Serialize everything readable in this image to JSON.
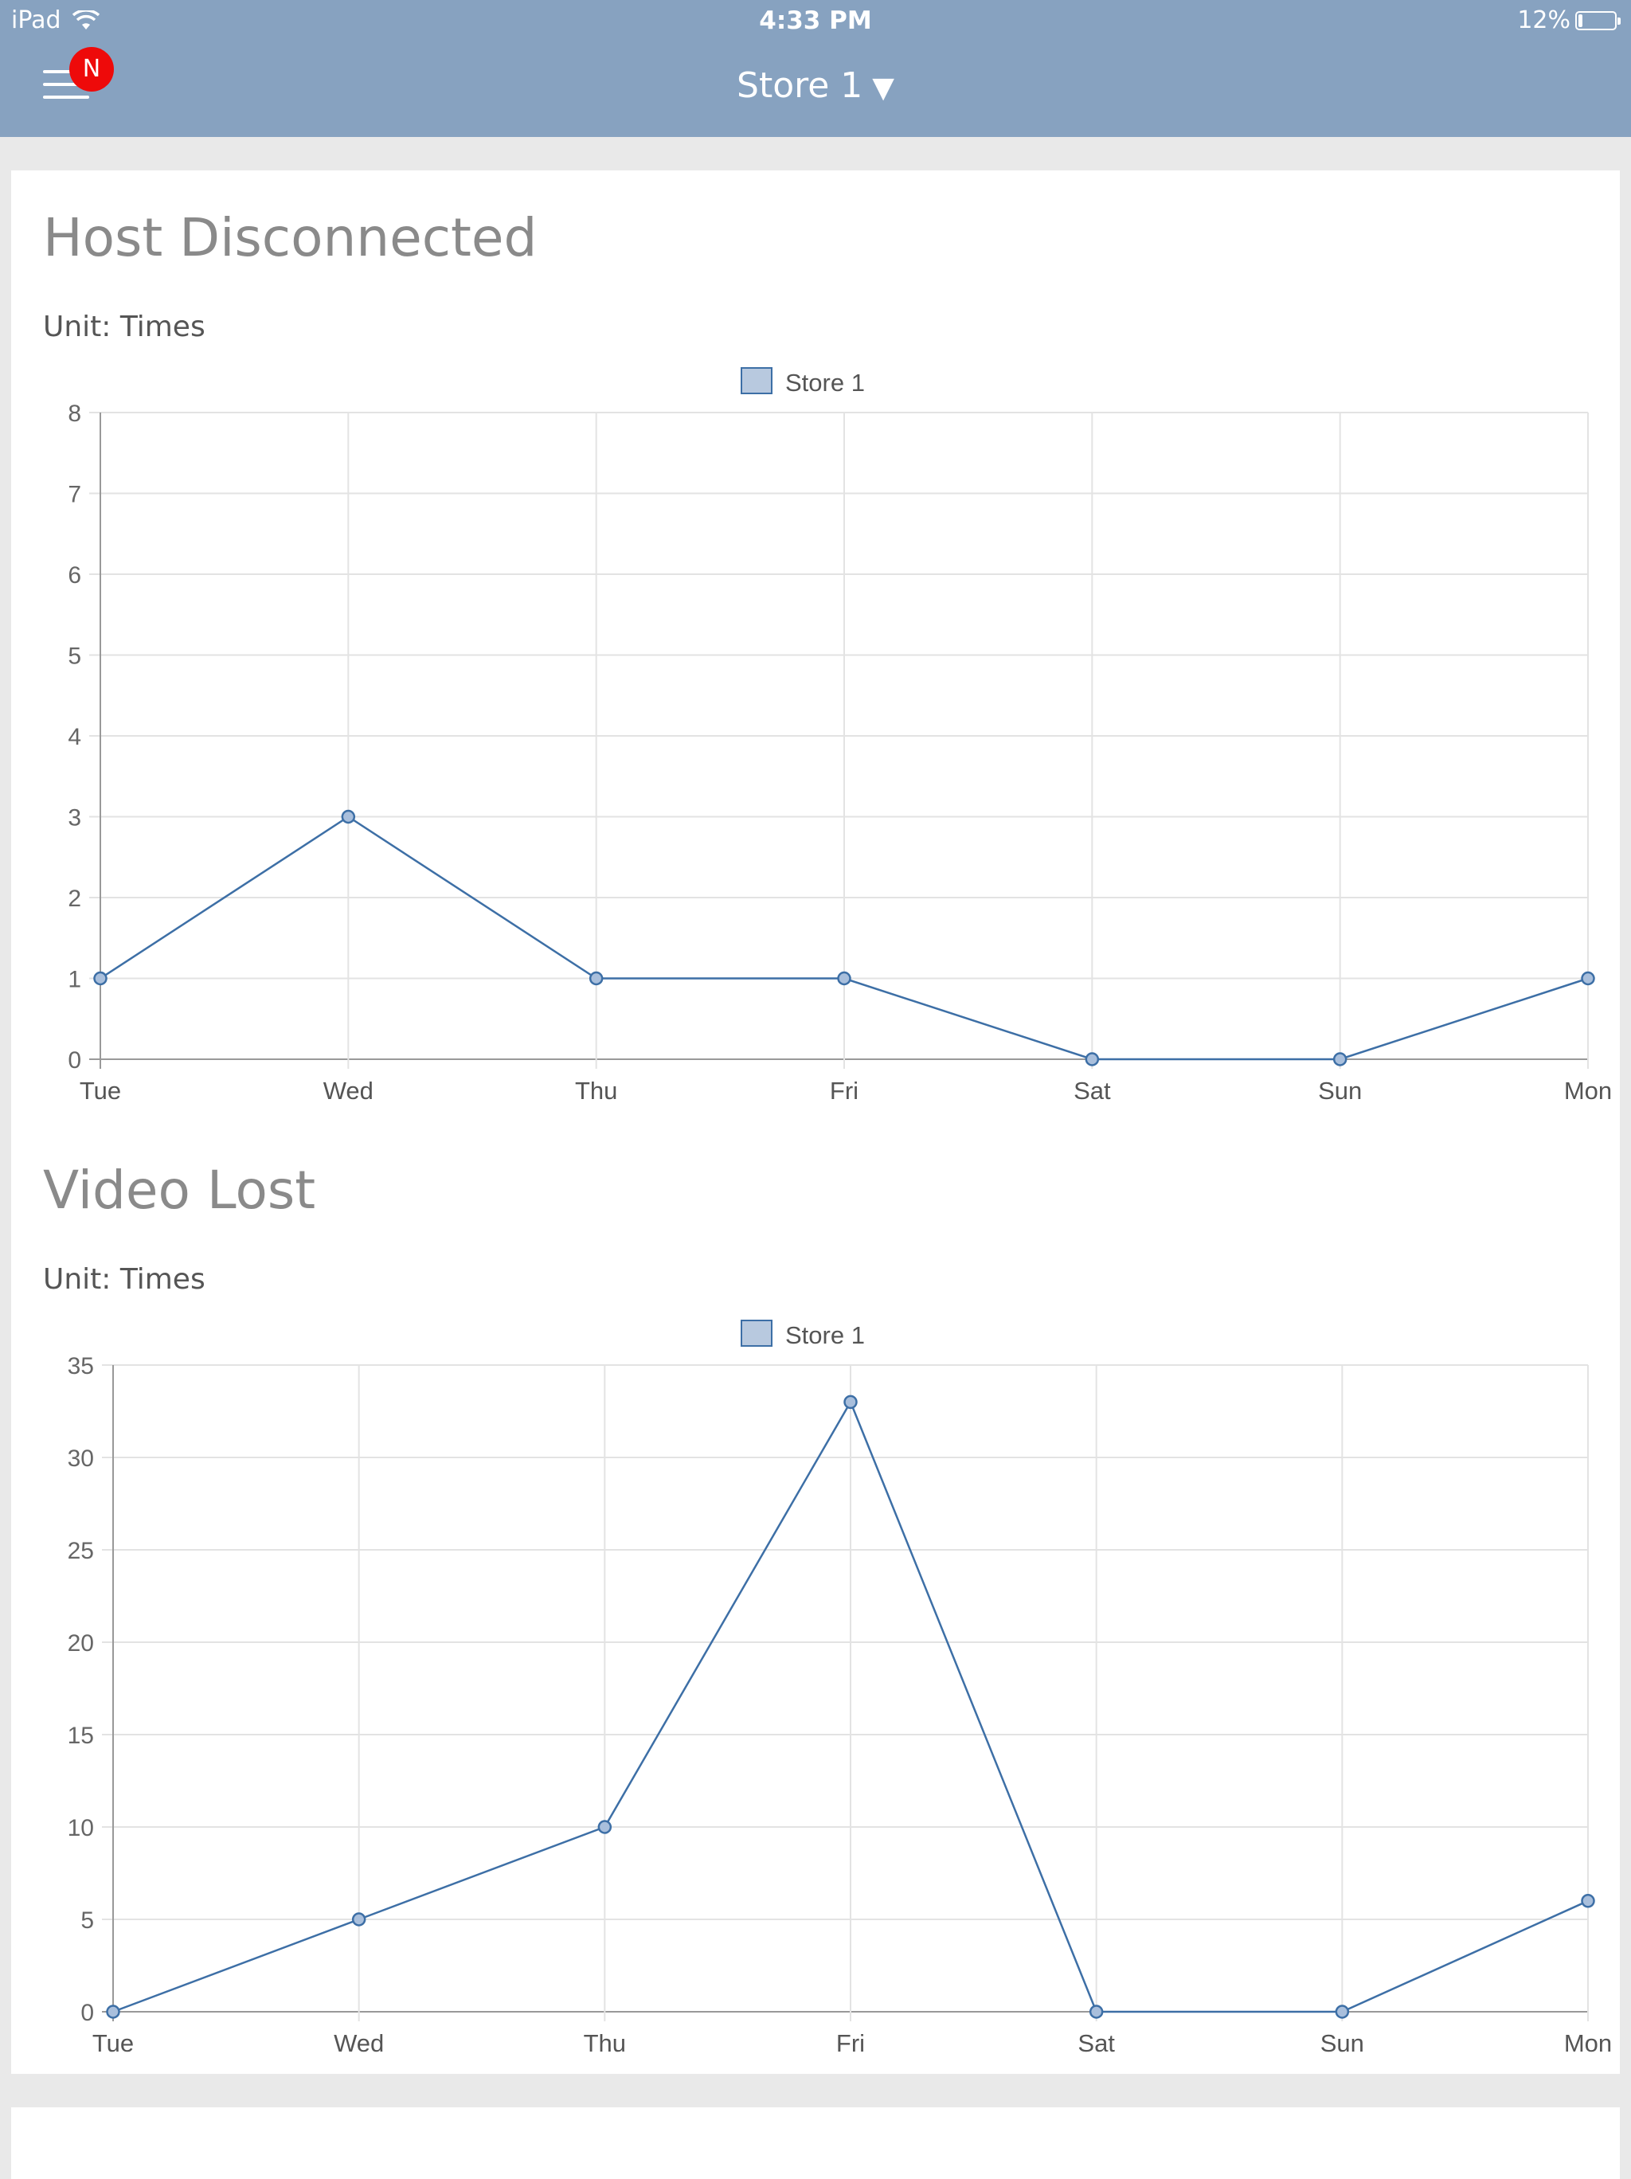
{
  "status_bar": {
    "device": "iPad",
    "wifi_icon": "wifi-icon",
    "time": "4:33 PM",
    "battery": "12%",
    "battery_level": 0.12
  },
  "nav": {
    "menu_icon": "hamburger-menu-icon",
    "badge": "N",
    "store": "Store 1",
    "caret": "▼"
  },
  "sections": [
    {
      "title": "Host Disconnected",
      "unit": "Unit: Times"
    },
    {
      "title": "Video Lost",
      "unit": "Unit: Times"
    }
  ],
  "colors": {
    "line": "#3d6fa6",
    "point_fill": "#a9bfdc",
    "legend_fill": "#b8c9df",
    "header": "#87a2c0",
    "badge": "#ee0a0a"
  },
  "chart_data": [
    {
      "type": "line",
      "title": "Host Disconnected",
      "categories": [
        "Tue",
        "Wed",
        "Thu",
        "Fri",
        "Sat",
        "Sun",
        "Mon"
      ],
      "series": [
        {
          "name": "Store 1",
          "values": [
            1,
            3,
            1,
            1,
            0,
            0,
            1
          ]
        }
      ],
      "ylim": [
        0,
        8
      ],
      "yticks": [
        0,
        1,
        2,
        3,
        4,
        5,
        6,
        7,
        8
      ],
      "grid": true,
      "legend": "top-center"
    },
    {
      "type": "line",
      "title": "Video Lost",
      "categories": [
        "Tue",
        "Wed",
        "Thu",
        "Fri",
        "Sat",
        "Sun",
        "Mon"
      ],
      "series": [
        {
          "name": "Store 1",
          "values": [
            0,
            5,
            10,
            33,
            0,
            0,
            6
          ]
        }
      ],
      "ylim": [
        0,
        35
      ],
      "yticks": [
        0,
        5,
        10,
        15,
        20,
        25,
        30,
        35
      ],
      "grid": true,
      "legend": "top-center"
    }
  ]
}
